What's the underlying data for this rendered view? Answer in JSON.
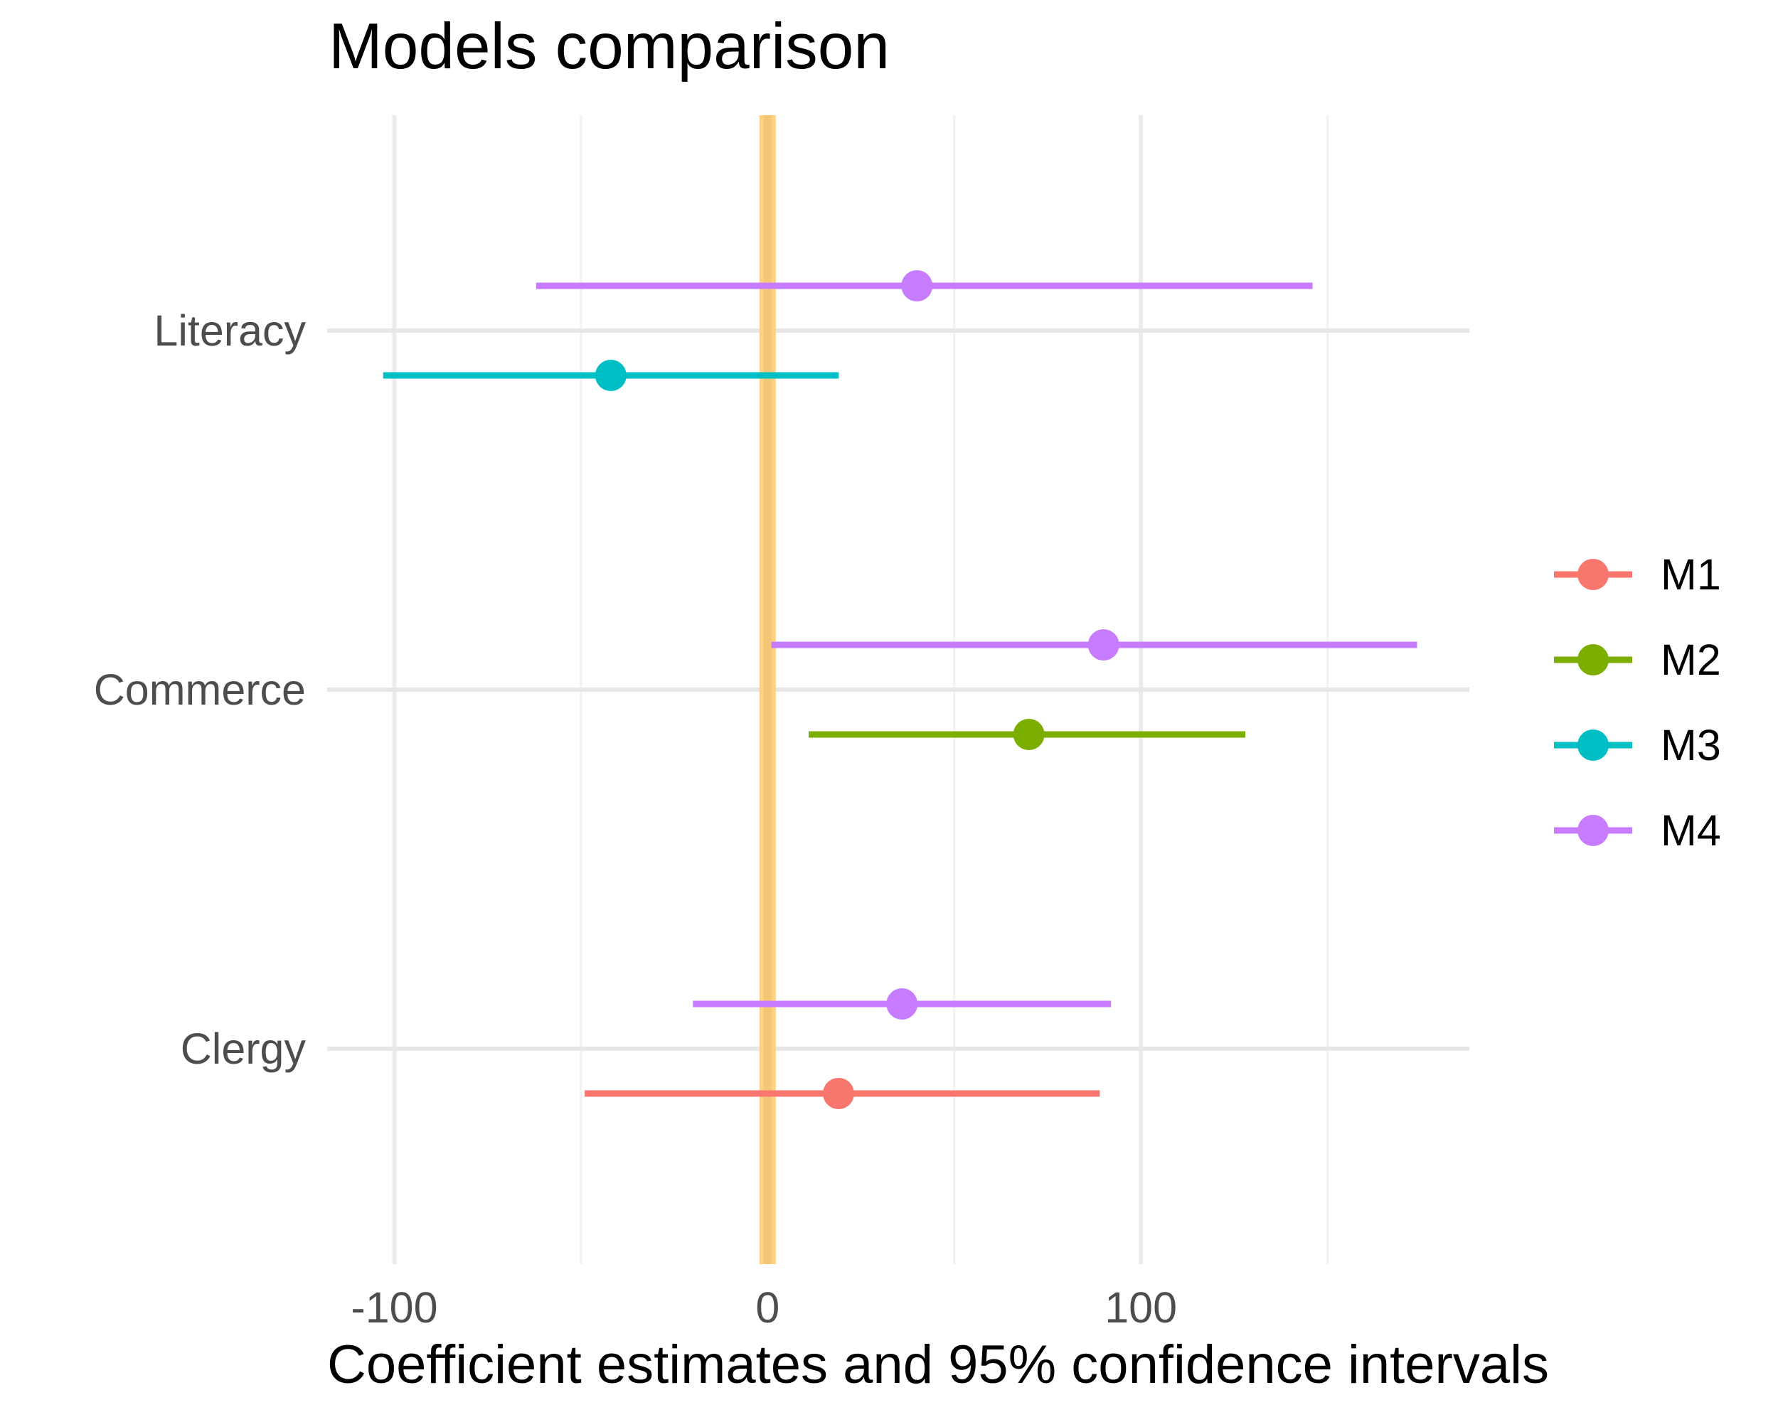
{
  "title": "Models comparison",
  "chart_data": {
    "type": "scatter",
    "subtype": "coefficient-pointrange",
    "title": "Models comparison",
    "xlabel": "Coefficient estimates and 95% confidence intervals",
    "ylabel": "",
    "categories": [
      "Literacy",
      "Commerce",
      "Clergy"
    ],
    "series": [
      {
        "name": "M1",
        "color": "#F8766D",
        "points": [
          {
            "category": "Clergy",
            "estimate": 19,
            "ci_low": -49,
            "ci_high": 89
          }
        ]
      },
      {
        "name": "M2",
        "color": "#7CAE00",
        "points": [
          {
            "category": "Commerce",
            "estimate": 70,
            "ci_low": 11,
            "ci_high": 128
          }
        ]
      },
      {
        "name": "M3",
        "color": "#00BFC4",
        "points": [
          {
            "category": "Literacy",
            "estimate": -42,
            "ci_low": -103,
            "ci_high": 19
          }
        ]
      },
      {
        "name": "M4",
        "color": "#C77CFF",
        "points": [
          {
            "category": "Literacy",
            "estimate": 40,
            "ci_low": -62,
            "ci_high": 146
          },
          {
            "category": "Commerce",
            "estimate": 90,
            "ci_low": 1,
            "ci_high": 174
          },
          {
            "category": "Clergy",
            "estimate": 36,
            "ci_low": -20,
            "ci_high": 92
          }
        ]
      }
    ],
    "xticks": [
      -100,
      0,
      100
    ],
    "xticks_minor": [
      -50,
      50,
      150
    ],
    "xlim": [
      -118,
      188
    ],
    "ref_band": {
      "x": 0,
      "color_outer": "#FCD284",
      "color_inner": "#F5C775"
    },
    "legend_position": "right",
    "grid": true,
    "style": {
      "axis_text_color": "#4D4D4D",
      "title_color": "#000000",
      "grid_major": "#EBEBEB",
      "grid_minor": "#F2F2F2",
      "grid_row": "#E7E7E7",
      "background": "#FFFFFF"
    }
  }
}
